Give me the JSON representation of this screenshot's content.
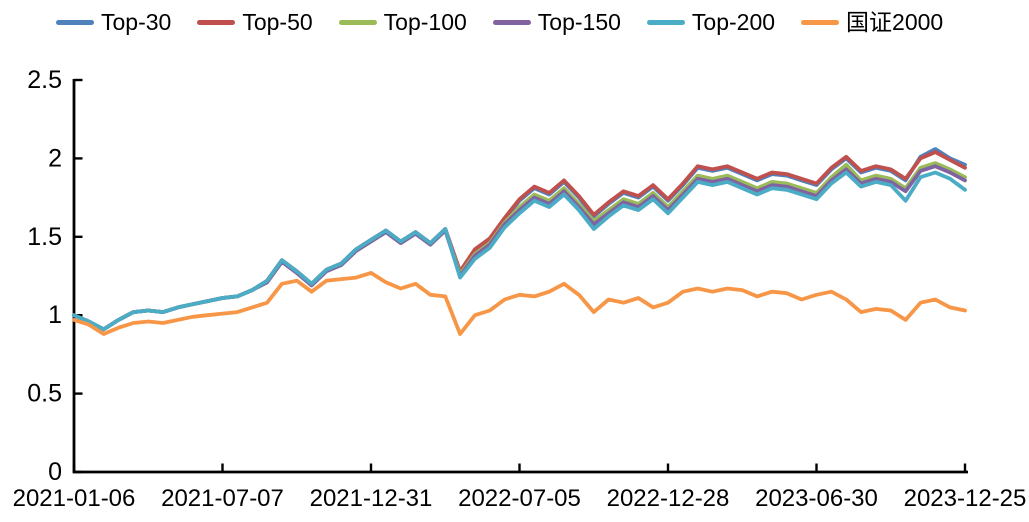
{
  "chart_data": {
    "type": "line",
    "title": "",
    "xlabel": "",
    "ylabel": "",
    "grid": false,
    "legend_position": "top",
    "axis_color": "#000000",
    "background_color": "#ffffff",
    "ylim": [
      0,
      2.5
    ],
    "y_ticks": [
      0,
      0.5,
      1,
      1.5,
      2,
      2.5
    ],
    "y_tick_labels": [
      "0",
      "0.5",
      "1",
      "1.5",
      "2",
      "2.5"
    ],
    "x_tick_labels": [
      "2021-01-06",
      "2021-07-07",
      "2021-12-31",
      "2022-07-05",
      "2022-12-28",
      "2023-06-30",
      "2023-12-25"
    ],
    "x_range_note": "61 samples evenly spaced from 2021-01-06 to 2023-12-25",
    "series": [
      {
        "name": "Top-30",
        "key": "top-30",
        "color": "#4F81BD",
        "values": [
          1.0,
          0.96,
          0.91,
          0.97,
          1.02,
          1.03,
          1.02,
          1.05,
          1.07,
          1.09,
          1.11,
          1.12,
          1.16,
          1.22,
          1.35,
          1.28,
          1.2,
          1.29,
          1.33,
          1.42,
          1.48,
          1.54,
          1.47,
          1.53,
          1.46,
          1.55,
          1.27,
          1.41,
          1.48,
          1.61,
          1.73,
          1.81,
          1.77,
          1.85,
          1.75,
          1.63,
          1.71,
          1.78,
          1.75,
          1.82,
          1.73,
          1.83,
          1.94,
          1.92,
          1.94,
          1.9,
          1.86,
          1.9,
          1.89,
          1.86,
          1.83,
          1.93,
          2.0,
          1.91,
          1.94,
          1.92,
          1.86,
          2.01,
          2.06,
          2.0,
          1.96
        ]
      },
      {
        "name": "Top-50",
        "key": "top-50",
        "color": "#C0504D",
        "values": [
          1.0,
          0.96,
          0.91,
          0.97,
          1.02,
          1.03,
          1.02,
          1.05,
          1.07,
          1.09,
          1.11,
          1.12,
          1.16,
          1.22,
          1.35,
          1.28,
          1.2,
          1.29,
          1.33,
          1.42,
          1.48,
          1.54,
          1.47,
          1.53,
          1.46,
          1.55,
          1.28,
          1.42,
          1.49,
          1.62,
          1.74,
          1.82,
          1.78,
          1.86,
          1.76,
          1.64,
          1.72,
          1.79,
          1.76,
          1.83,
          1.74,
          1.84,
          1.95,
          1.93,
          1.95,
          1.91,
          1.87,
          1.91,
          1.9,
          1.87,
          1.84,
          1.94,
          2.01,
          1.92,
          1.95,
          1.93,
          1.87,
          2.0,
          2.04,
          1.99,
          1.94
        ]
      },
      {
        "name": "Top-100",
        "key": "top-100",
        "color": "#9BBB59",
        "values": [
          1.0,
          0.96,
          0.91,
          0.97,
          1.02,
          1.03,
          1.02,
          1.05,
          1.07,
          1.09,
          1.11,
          1.12,
          1.16,
          1.21,
          1.34,
          1.27,
          1.19,
          1.28,
          1.32,
          1.41,
          1.47,
          1.53,
          1.46,
          1.52,
          1.45,
          1.54,
          1.26,
          1.39,
          1.46,
          1.59,
          1.69,
          1.77,
          1.73,
          1.81,
          1.71,
          1.6,
          1.67,
          1.74,
          1.71,
          1.78,
          1.69,
          1.79,
          1.89,
          1.87,
          1.89,
          1.85,
          1.81,
          1.85,
          1.84,
          1.81,
          1.78,
          1.88,
          1.96,
          1.86,
          1.89,
          1.87,
          1.81,
          1.94,
          1.97,
          1.93,
          1.88
        ]
      },
      {
        "name": "Top-150",
        "key": "top-150",
        "color": "#8064A2",
        "values": [
          1.0,
          0.96,
          0.91,
          0.97,
          1.02,
          1.03,
          1.02,
          1.05,
          1.07,
          1.09,
          1.11,
          1.12,
          1.16,
          1.21,
          1.34,
          1.27,
          1.19,
          1.28,
          1.32,
          1.41,
          1.47,
          1.53,
          1.46,
          1.52,
          1.45,
          1.54,
          1.25,
          1.38,
          1.45,
          1.58,
          1.67,
          1.75,
          1.71,
          1.79,
          1.69,
          1.58,
          1.65,
          1.72,
          1.69,
          1.76,
          1.67,
          1.77,
          1.87,
          1.85,
          1.87,
          1.83,
          1.79,
          1.83,
          1.82,
          1.79,
          1.76,
          1.86,
          1.93,
          1.84,
          1.87,
          1.85,
          1.79,
          1.92,
          1.95,
          1.91,
          1.86
        ]
      },
      {
        "name": "Top-200",
        "key": "top-200",
        "color": "#4BACC6",
        "values": [
          1.0,
          0.96,
          0.91,
          0.97,
          1.02,
          1.03,
          1.02,
          1.05,
          1.07,
          1.09,
          1.11,
          1.12,
          1.16,
          1.22,
          1.35,
          1.28,
          1.2,
          1.29,
          1.33,
          1.42,
          1.48,
          1.54,
          1.47,
          1.53,
          1.46,
          1.55,
          1.24,
          1.36,
          1.43,
          1.56,
          1.65,
          1.73,
          1.69,
          1.77,
          1.67,
          1.55,
          1.63,
          1.7,
          1.67,
          1.74,
          1.65,
          1.75,
          1.85,
          1.83,
          1.85,
          1.81,
          1.77,
          1.81,
          1.8,
          1.77,
          1.74,
          1.84,
          1.91,
          1.82,
          1.85,
          1.83,
          1.73,
          1.88,
          1.91,
          1.87,
          1.8
        ]
      },
      {
        "name": "国证2000",
        "key": "gz-2000",
        "color": "#F79646",
        "values": [
          0.97,
          0.94,
          0.88,
          0.92,
          0.95,
          0.96,
          0.95,
          0.97,
          0.99,
          1.0,
          1.01,
          1.02,
          1.05,
          1.08,
          1.2,
          1.22,
          1.15,
          1.22,
          1.23,
          1.24,
          1.27,
          1.21,
          1.17,
          1.2,
          1.13,
          1.12,
          0.88,
          1.0,
          1.03,
          1.1,
          1.13,
          1.12,
          1.15,
          1.2,
          1.13,
          1.02,
          1.1,
          1.08,
          1.11,
          1.05,
          1.08,
          1.15,
          1.17,
          1.15,
          1.17,
          1.16,
          1.12,
          1.15,
          1.14,
          1.1,
          1.13,
          1.15,
          1.1,
          1.02,
          1.04,
          1.03,
          0.97,
          1.08,
          1.1,
          1.05,
          1.03
        ]
      }
    ]
  }
}
